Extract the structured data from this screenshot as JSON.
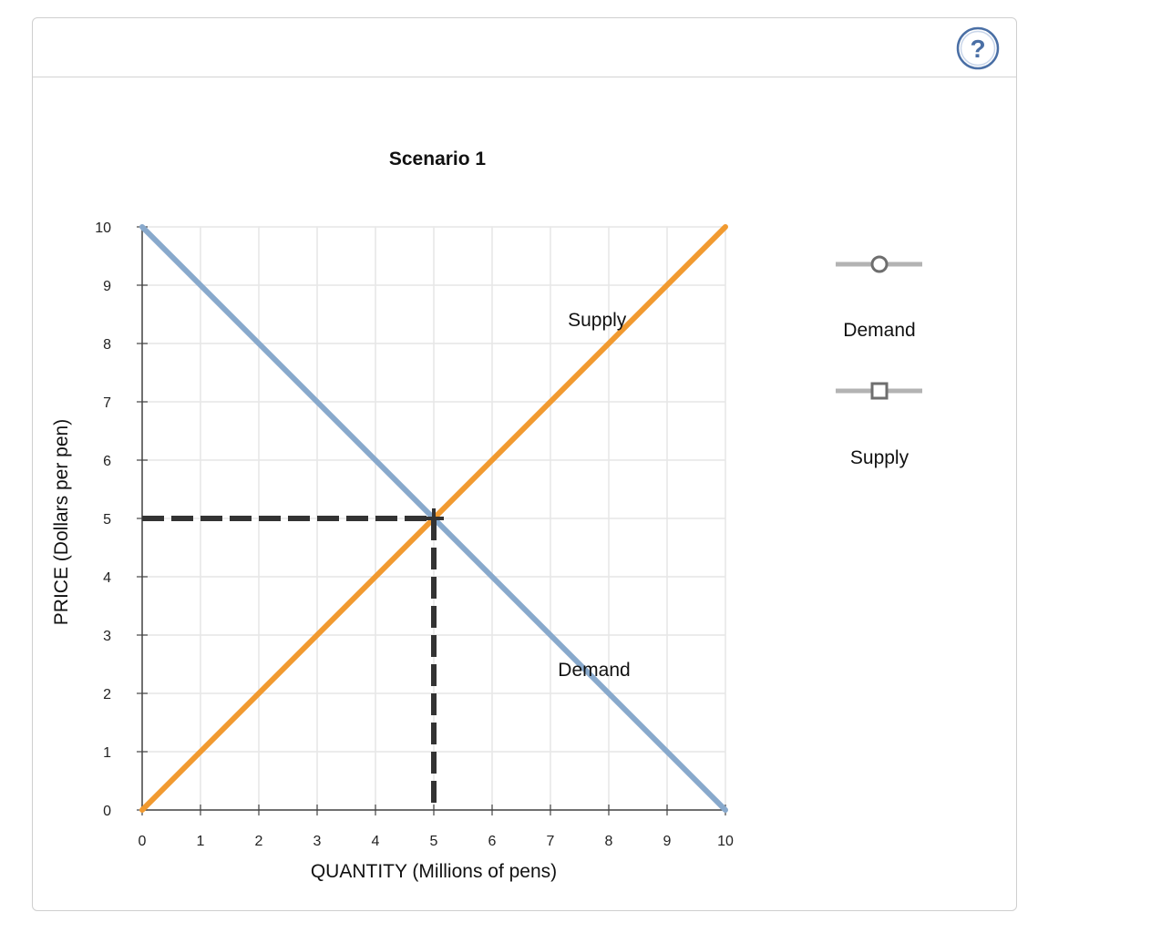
{
  "help": {
    "glyph": "?",
    "icon": "help-icon",
    "color": "#4a6fa5"
  },
  "chart_data": {
    "type": "line",
    "title": "Scenario 1",
    "xlabel": "QUANTITY (Millions of pens)",
    "ylabel": "PRICE (Dollars per pen)",
    "xlim": [
      0,
      10
    ],
    "ylim": [
      0,
      10
    ],
    "xticks": [
      "0",
      "1",
      "2",
      "3",
      "4",
      "5",
      "6",
      "7",
      "8",
      "9",
      "10"
    ],
    "yticks": [
      "0",
      "1",
      "2",
      "3",
      "4",
      "5",
      "6",
      "7",
      "8",
      "9",
      "10"
    ],
    "grid": true,
    "series": [
      {
        "name": "Demand",
        "color": "#88a9cc",
        "x": [
          0,
          10
        ],
        "y": [
          10,
          0
        ],
        "marker": "circle"
      },
      {
        "name": "Supply",
        "color": "#f19a30",
        "x": [
          0,
          10
        ],
        "y": [
          0,
          10
        ],
        "marker": "square"
      }
    ],
    "curve_labels": [
      {
        "text": "Supply",
        "x": 7.8,
        "y": 8.3
      },
      {
        "text": "Demand",
        "x": 7.75,
        "y": 2.3
      }
    ],
    "equilibrium": {
      "x": 5,
      "y": 5,
      "color": "#333333"
    },
    "legend": {
      "position": "right",
      "entries": [
        "Demand",
        "Supply"
      ]
    }
  }
}
